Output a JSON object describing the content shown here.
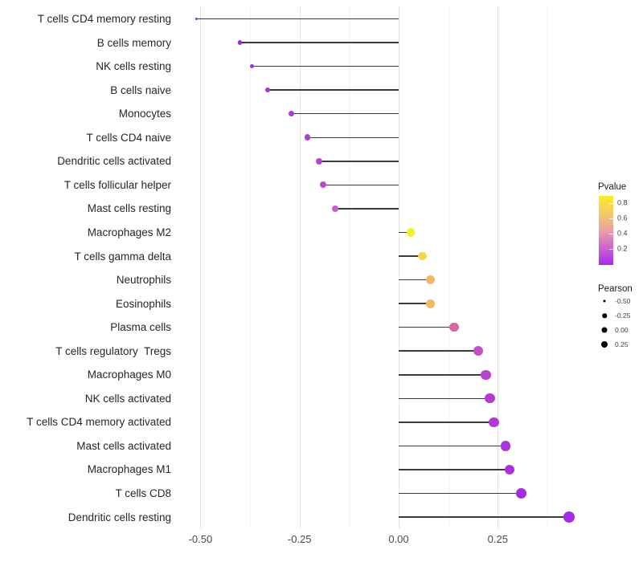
{
  "chart_data": {
    "type": "lollipop",
    "orientation": "horizontal",
    "title": "",
    "xlabel": "",
    "ylabel": "",
    "xlim": [
      -0.545,
      0.455
    ],
    "baseline": 0,
    "grid": "vertical-only",
    "x_major_ticks": [
      -0.5,
      -0.25,
      0,
      0.25
    ],
    "x_tick_labels": [
      "-0.50",
      "-0.25",
      "0.00",
      "0.25"
    ],
    "x_minor_ticks": [
      -0.375,
      -0.125,
      0.125,
      0.375
    ],
    "categories": [
      "T cells CD4 memory resting",
      "B cells memory",
      "NK cells resting",
      "B cells naive",
      "Monocytes",
      "T cells CD4 naive",
      "Dendritic cells activated",
      "T cells follicular helper",
      "Mast cells resting",
      "Macrophages M2",
      "T cells gamma delta",
      "Neutrophils",
      "Eosinophils",
      "Plasma cells",
      "T cells regulatory  Tregs",
      "Macrophages M0",
      "NK cells activated",
      "T cells CD4 memory activated",
      "Mast cells activated",
      "Macrophages M1",
      "T cells CD8",
      "Dendritic cells resting"
    ],
    "series": [
      {
        "name": "Pearson",
        "values": [
          -0.51,
          -0.4,
          -0.37,
          -0.33,
          -0.27,
          -0.23,
          -0.2,
          -0.19,
          -0.16,
          0.03,
          0.06,
          0.08,
          0.08,
          0.14,
          0.2,
          0.22,
          0.23,
          0.24,
          0.27,
          0.28,
          0.31,
          0.43
        ]
      }
    ],
    "point_colors": [
      "#9b32d0",
      "#9630d4",
      "#9a33d3",
      "#a036d3",
      "#a93cd4",
      "#af40d2",
      "#b646d1",
      "#ba4bd0",
      "#c85fc8",
      "#f6ee26",
      "#f3d748",
      "#f0b968",
      "#f0b968",
      "#d4699f",
      "#c44ec5",
      "#b940d1",
      "#b23ad6",
      "#b13ad7",
      "#aa35da",
      "#a833dc",
      "#a22ee2",
      "#a32ce8"
    ],
    "line_color": "#3b3b3b",
    "legend_position": "right",
    "legends": {
      "pvalue": {
        "title": "Pvalue",
        "tick_labels": [
          "0.8",
          "0.6",
          "0.4",
          "0.2"
        ],
        "gradient_top_to_bottom": [
          "#f8ee27",
          "#f5c967",
          "#eba0a7",
          "#cf63cf",
          "#a629ee"
        ]
      },
      "pearson": {
        "title": "Pearson",
        "items": [
          {
            "label": "-0.50",
            "value": -0.5
          },
          {
            "label": "-0.25",
            "value": -0.25
          },
          {
            "label": "0.00",
            "value": 0.0
          },
          {
            "label": "0.25",
            "value": 0.25
          }
        ]
      }
    }
  }
}
